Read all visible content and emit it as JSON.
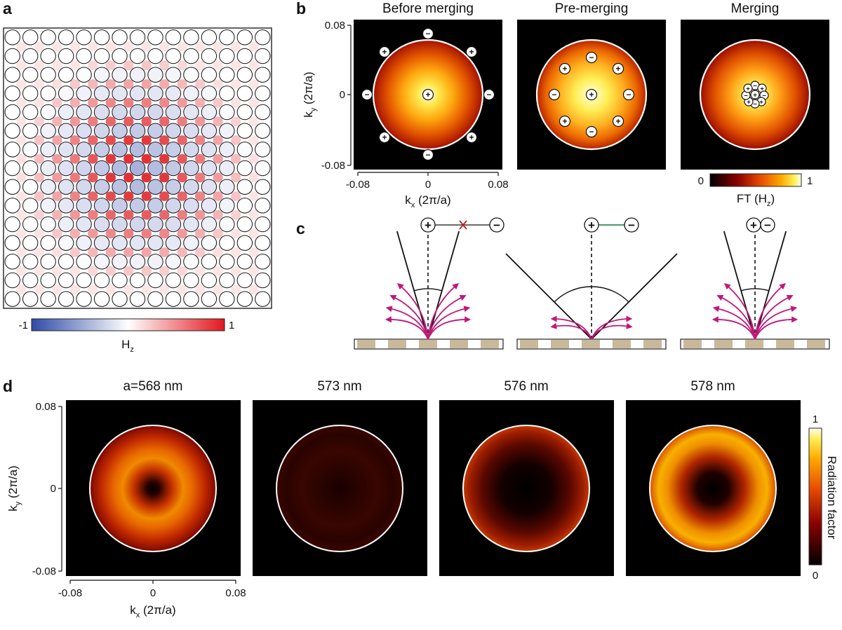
{
  "panel_a": {
    "label": "a",
    "colorbar": {
      "min": "-1",
      "max": "1",
      "label": "H",
      "label_sub": "z"
    },
    "lattice": {
      "rows": 15,
      "cols": 15
    }
  },
  "panel_b": {
    "label": "b",
    "titles": [
      "Before merging",
      "Pre-merging",
      "Merging"
    ],
    "x_ticks": [
      "-0.08",
      "0",
      "0.08"
    ],
    "y_ticks": [
      "0.08",
      "0",
      "-0.08"
    ],
    "xlabel": {
      "k": "k",
      "sub": "x",
      "rest": " (2π/a)"
    },
    "ylabel": {
      "k": "k",
      "sub": "y",
      "rest": " (2π/a)"
    },
    "colorbar": {
      "min": "0",
      "max": "1",
      "label": "FT (H",
      "label_sub": "z",
      "label_end": ")"
    },
    "charge_plus": "+",
    "charge_minus": "−"
  },
  "panel_c": {
    "label": "c"
  },
  "panel_d": {
    "label": "d",
    "titles": [
      "a=568 nm",
      "573 nm",
      "576 nm",
      "578 nm"
    ],
    "x_ticks": [
      "-0.08",
      "0",
      "0.08"
    ],
    "y_ticks": [
      "0.08",
      "0",
      "-0.08"
    ],
    "xlabel": {
      "k": "k",
      "sub": "x",
      "rest": " (2π/a)"
    },
    "ylabel": {
      "k": "k",
      "sub": "y",
      "rest": " (2π/a)"
    },
    "colorbar": {
      "max": "1",
      "min": "0",
      "label": "Radiation factor"
    }
  },
  "colors": {
    "field_negative": "#3b52b0",
    "field_positive": "#e0262b",
    "radiation_arrow": "#c0187a",
    "forbidden_link": "#b22222",
    "allowed_link": "#2e8b57",
    "grating_block": "#c9b99a"
  }
}
